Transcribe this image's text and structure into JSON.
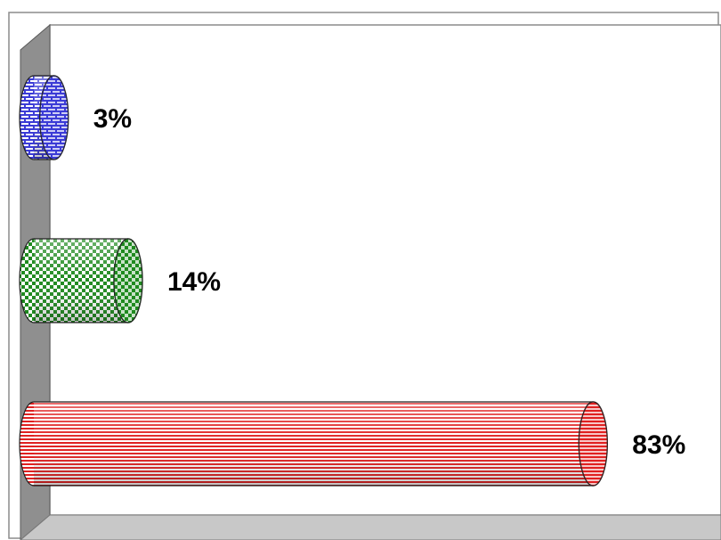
{
  "chart_data": {
    "type": "bar",
    "orientation": "horizontal",
    "three_d": true,
    "title": "",
    "xlabel": "",
    "ylabel": "",
    "xlim": [
      0,
      100
    ],
    "grid": false,
    "legend": "none",
    "series": [
      {
        "values": [
          3,
          14,
          83
        ],
        "labels": [
          "3%",
          "14%",
          "83%"
        ],
        "colors": [
          "#3b3bd6",
          "#1f8a1f",
          "#e02020"
        ],
        "patterns": [
          "brick",
          "checker",
          "horizontal-stripes"
        ]
      }
    ]
  }
}
